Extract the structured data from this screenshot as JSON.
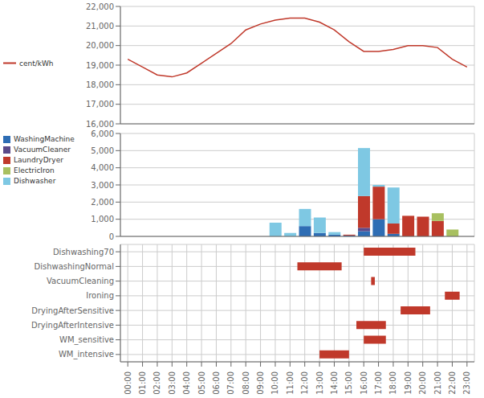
{
  "chart_data": [
    {
      "type": "line",
      "x": [
        0,
        1,
        2,
        3,
        4,
        5,
        6,
        7,
        8,
        9,
        10,
        11,
        12,
        13,
        14,
        15,
        16,
        17,
        18,
        19,
        20,
        21,
        22,
        23
      ],
      "xlim": [
        -0.5,
        23.5
      ],
      "xticks": [
        0,
        1,
        2,
        3,
        4,
        5,
        6,
        7,
        8,
        9,
        10,
        11,
        12,
        13,
        14,
        15,
        16,
        17,
        18,
        19,
        20,
        21,
        22,
        23
      ],
      "series": [
        {
          "name": "cent/kWh",
          "color": "#c0392b",
          "values": [
            19300,
            18900,
            18500,
            18400,
            18600,
            19100,
            19600,
            20100,
            20800,
            21100,
            21300,
            21400,
            21400,
            21200,
            20800,
            20200,
            19700,
            19700,
            19800,
            20000,
            20000,
            19900,
            19300,
            18900
          ]
        }
      ],
      "ylim": [
        16000,
        22000
      ],
      "yticks": [
        {
          "value": 16000,
          "label": "16,000"
        },
        {
          "value": 17000,
          "label": "17,000"
        },
        {
          "value": 18000,
          "label": "18,000"
        },
        {
          "value": 19000,
          "label": "19,000"
        },
        {
          "value": 20000,
          "label": "20,000"
        },
        {
          "value": 21000,
          "label": "21,000"
        },
        {
          "value": 22000,
          "label": "22,000"
        }
      ],
      "grid": true,
      "legend": "left",
      "tick_labels": "y"
    },
    {
      "type": "bar",
      "stacked": true,
      "x": [
        0,
        1,
        2,
        3,
        4,
        5,
        6,
        7,
        8,
        9,
        10,
        11,
        12,
        13,
        14,
        15,
        16,
        17,
        18,
        19,
        20,
        21,
        22,
        23
      ],
      "xlim": [
        -0.5,
        23.5
      ],
      "xticks": [
        0,
        1,
        2,
        3,
        4,
        5,
        6,
        7,
        8,
        9,
        10,
        11,
        12,
        13,
        14,
        15,
        16,
        17,
        18,
        19,
        20,
        21,
        22,
        23
      ],
      "series": [
        {
          "name": "WashingMachine",
          "color": "#2e6db4",
          "values": [
            0,
            0,
            0,
            0,
            0,
            0,
            0,
            0,
            0,
            0,
            0,
            0,
            600,
            200,
            100,
            50,
            300,
            1000,
            150,
            0,
            0,
            0,
            0,
            0
          ]
        },
        {
          "name": "VacuumCleaner",
          "color": "#5b4a8a",
          "values": [
            0,
            0,
            0,
            0,
            0,
            0,
            0,
            0,
            0,
            0,
            0,
            0,
            0,
            0,
            0,
            0,
            200,
            0,
            0,
            0,
            0,
            0,
            0,
            0
          ]
        },
        {
          "name": "LaundryDryer",
          "color": "#c0392b",
          "values": [
            0,
            0,
            0,
            0,
            0,
            0,
            0,
            0,
            0,
            0,
            0,
            0,
            0,
            0,
            0,
            50,
            1850,
            1900,
            600,
            1200,
            1150,
            900,
            0,
            0
          ]
        },
        {
          "name": "ElectricIron",
          "color": "#a8c060",
          "values": [
            0,
            0,
            0,
            0,
            0,
            0,
            0,
            0,
            0,
            0,
            0,
            0,
            0,
            0,
            0,
            0,
            0,
            0,
            0,
            0,
            0,
            450,
            400,
            0
          ]
        },
        {
          "name": "Dishwasher",
          "color": "#7ec8e3",
          "values": [
            0,
            0,
            0,
            0,
            0,
            0,
            0,
            0,
            0,
            0,
            800,
            200,
            1000,
            900,
            150,
            0,
            2800,
            100,
            2100,
            0,
            0,
            0,
            0,
            0
          ]
        }
      ],
      "ylim": [
        0,
        6000
      ],
      "yticks": [
        0,
        {
          "value": 1000,
          "label": "1,000"
        },
        {
          "value": 2000,
          "label": "2,000"
        },
        {
          "value": 3000,
          "label": "3,000"
        },
        {
          "value": 4000,
          "label": "4,000"
        },
        {
          "value": 5000,
          "label": "5,000"
        },
        {
          "value": 6000,
          "label": "6,000"
        }
      ],
      "grid": true,
      "legend": "left",
      "tick_labels": "y"
    },
    {
      "type": "gantt",
      "orientation": "horizontal",
      "categories": [
        "Dishwashing70",
        "DishwashingNormal",
        "VacuumCleaning",
        "Ironing",
        "DryingAfterSensitive",
        "DryingAfterIntensive",
        "WM_sensitive",
        "WM_intensive"
      ],
      "start": [
        16.0,
        11.5,
        16.5,
        21.5,
        18.5,
        15.5,
        16.0,
        13.0
      ],
      "end": [
        19.5,
        14.5,
        16.75,
        22.5,
        20.5,
        17.5,
        17.5,
        15.0
      ],
      "color": "#c0392b",
      "xlim": [
        -0.5,
        23.5
      ],
      "xticks": [
        {
          "value": 0,
          "label": "00:00"
        },
        {
          "value": 1,
          "label": "01:00"
        },
        {
          "value": 2,
          "label": "02:00"
        },
        {
          "value": 3,
          "label": "03:00"
        },
        {
          "value": 4,
          "label": "04:00"
        },
        {
          "value": 5,
          "label": "05:00"
        },
        {
          "value": 6,
          "label": "06:00"
        },
        {
          "value": 7,
          "label": "07:00"
        },
        {
          "value": 8,
          "label": "08:00"
        },
        {
          "value": 9,
          "label": "09:00"
        },
        {
          "value": 10,
          "label": "10:00"
        },
        {
          "value": 11,
          "label": "11:00"
        },
        {
          "value": 12,
          "label": "12:00"
        },
        {
          "value": 13,
          "label": "13:00"
        },
        {
          "value": 14,
          "label": "14:00"
        },
        {
          "value": 15,
          "label": "15:00"
        },
        {
          "value": 16,
          "label": "16:00"
        },
        {
          "value": 17,
          "label": "17:00"
        },
        {
          "value": 18,
          "label": "18:00"
        },
        {
          "value": 19,
          "label": "19:00"
        },
        {
          "value": 20,
          "label": "20:00"
        },
        {
          "value": 21,
          "label": "21:00"
        },
        {
          "value": 22,
          "label": "22:00"
        },
        {
          "value": 23,
          "label": "23:00"
        }
      ],
      "grid": true
    }
  ]
}
